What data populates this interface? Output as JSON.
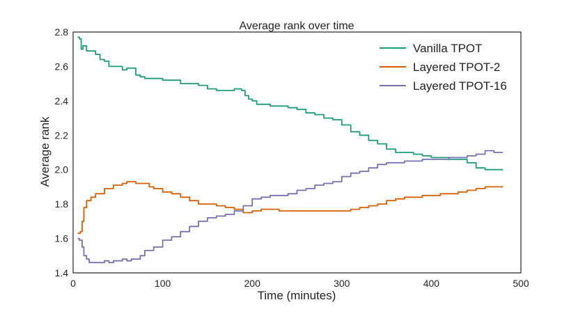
{
  "chart_data": {
    "type": "line",
    "title": "Average rank over time",
    "xlabel": "Time (minutes)",
    "ylabel": "Average rank",
    "xlim": [
      0,
      500
    ],
    "ylim": [
      1.4,
      2.8
    ],
    "xticks": [
      0,
      100,
      200,
      300,
      400,
      500
    ],
    "yticks": [
      1.4,
      1.6,
      1.8,
      2.0,
      2.2,
      2.4,
      2.6,
      2.8
    ],
    "grid": false,
    "legend_position": "top-right",
    "series": [
      {
        "name": "Vanilla TPOT",
        "color": "#1b9e77",
        "x": [
          5,
          7,
          9,
          11,
          15,
          20,
          25,
          30,
          35,
          40,
          45,
          50,
          55,
          60,
          65,
          70,
          75,
          80,
          90,
          100,
          110,
          120,
          130,
          140,
          150,
          160,
          170,
          180,
          188,
          192,
          196,
          200,
          205,
          210,
          220,
          230,
          240,
          250,
          260,
          270,
          280,
          290,
          300,
          310,
          320,
          330,
          340,
          350,
          360,
          370,
          380,
          390,
          400,
          410,
          420,
          430,
          440,
          450,
          460,
          470,
          480
        ],
        "y": [
          2.77,
          2.76,
          2.7,
          2.72,
          2.69,
          2.69,
          2.67,
          2.64,
          2.63,
          2.6,
          2.6,
          2.6,
          2.58,
          2.59,
          2.59,
          2.55,
          2.54,
          2.53,
          2.53,
          2.52,
          2.52,
          2.5,
          2.5,
          2.49,
          2.47,
          2.46,
          2.46,
          2.47,
          2.46,
          2.43,
          2.41,
          2.4,
          2.38,
          2.38,
          2.37,
          2.37,
          2.36,
          2.35,
          2.33,
          2.32,
          2.3,
          2.29,
          2.26,
          2.22,
          2.2,
          2.17,
          2.15,
          2.12,
          2.1,
          2.1,
          2.09,
          2.08,
          2.07,
          2.07,
          2.06,
          2.06,
          2.04,
          2.01,
          2.0,
          2.0,
          2.0
        ]
      },
      {
        "name": "Layered TPOT-2",
        "color": "#d95f02",
        "x": [
          5,
          8,
          10,
          12,
          15,
          20,
          25,
          30,
          35,
          40,
          45,
          50,
          55,
          60,
          65,
          70,
          75,
          80,
          85,
          90,
          100,
          110,
          120,
          130,
          140,
          150,
          160,
          170,
          180,
          190,
          200,
          210,
          220,
          230,
          240,
          250,
          260,
          270,
          280,
          290,
          300,
          310,
          320,
          330,
          340,
          350,
          360,
          370,
          380,
          390,
          400,
          410,
          420,
          430,
          440,
          450,
          460,
          470,
          480
        ],
        "y": [
          1.63,
          1.64,
          1.7,
          1.78,
          1.82,
          1.84,
          1.86,
          1.86,
          1.89,
          1.89,
          1.91,
          1.91,
          1.92,
          1.93,
          1.93,
          1.92,
          1.92,
          1.92,
          1.9,
          1.89,
          1.87,
          1.86,
          1.84,
          1.82,
          1.8,
          1.8,
          1.79,
          1.78,
          1.77,
          1.75,
          1.76,
          1.77,
          1.77,
          1.76,
          1.76,
          1.76,
          1.76,
          1.76,
          1.76,
          1.76,
          1.76,
          1.77,
          1.78,
          1.79,
          1.8,
          1.82,
          1.83,
          1.84,
          1.84,
          1.85,
          1.85,
          1.86,
          1.86,
          1.87,
          1.88,
          1.89,
          1.9,
          1.9,
          1.9
        ]
      },
      {
        "name": "Layered TPOT-16",
        "color": "#7570b3",
        "x": [
          5,
          7,
          10,
          12,
          15,
          18,
          20,
          25,
          30,
          35,
          40,
          45,
          50,
          55,
          60,
          65,
          70,
          75,
          80,
          90,
          100,
          110,
          120,
          130,
          140,
          150,
          160,
          170,
          180,
          190,
          200,
          210,
          220,
          230,
          240,
          250,
          260,
          270,
          280,
          290,
          300,
          310,
          320,
          330,
          340,
          350,
          360,
          370,
          380,
          390,
          400,
          410,
          420,
          430,
          440,
          450,
          460,
          470,
          480
        ],
        "y": [
          1.6,
          1.59,
          1.55,
          1.5,
          1.48,
          1.46,
          1.46,
          1.46,
          1.46,
          1.47,
          1.46,
          1.47,
          1.47,
          1.48,
          1.47,
          1.48,
          1.48,
          1.5,
          1.53,
          1.55,
          1.59,
          1.61,
          1.64,
          1.67,
          1.7,
          1.72,
          1.73,
          1.74,
          1.76,
          1.79,
          1.83,
          1.84,
          1.85,
          1.85,
          1.86,
          1.88,
          1.89,
          1.91,
          1.92,
          1.93,
          1.96,
          1.98,
          1.99,
          2.01,
          2.03,
          2.04,
          2.04,
          2.05,
          2.05,
          2.06,
          2.06,
          2.06,
          2.07,
          2.07,
          2.08,
          2.09,
          2.11,
          2.1,
          2.1
        ]
      }
    ]
  }
}
